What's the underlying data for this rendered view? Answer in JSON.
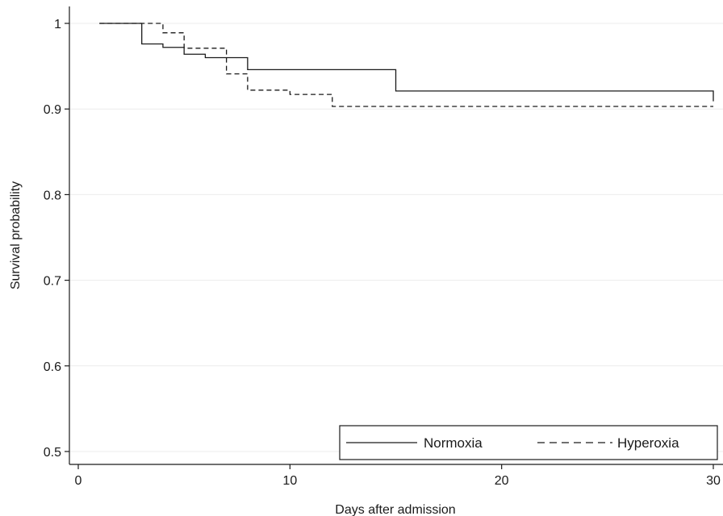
{
  "chart_data": {
    "type": "line",
    "title": "",
    "xlabel": "Days after admission",
    "ylabel": "Survival probability",
    "xlim": [
      0,
      30
    ],
    "ylim": [
      0.5,
      1.0
    ],
    "x_ticks": [
      0,
      10,
      20,
      30
    ],
    "y_ticks": [
      0.5,
      0.6,
      0.7,
      0.8,
      0.9,
      1.0
    ],
    "x_tick_labels": [
      "0",
      "10",
      "20",
      "30"
    ],
    "y_tick_labels": [
      "0.5",
      "0.6",
      "0.7",
      "0.8",
      "0.9",
      "1"
    ],
    "grid": true,
    "legend_position": "bottom-right",
    "series": [
      {
        "name": "Normoxia",
        "style": "solid",
        "color": "#1a1a1a",
        "x": [
          1,
          2,
          3,
          4,
          5,
          6,
          7,
          8,
          13,
          15,
          29,
          30
        ],
        "y": [
          1.0,
          1.0,
          0.976,
          0.972,
          0.964,
          0.96,
          0.96,
          0.946,
          0.946,
          0.921,
          0.921,
          0.909
        ]
      },
      {
        "name": "Hyperoxia",
        "style": "dashed",
        "color": "#1a1a1a",
        "x": [
          1,
          2,
          3,
          4,
          5,
          6,
          7,
          8,
          9,
          10,
          12,
          30
        ],
        "y": [
          1.0,
          1.0,
          1.0,
          0.989,
          0.971,
          0.971,
          0.941,
          0.922,
          0.922,
          0.917,
          0.903,
          0.903
        ]
      }
    ]
  }
}
